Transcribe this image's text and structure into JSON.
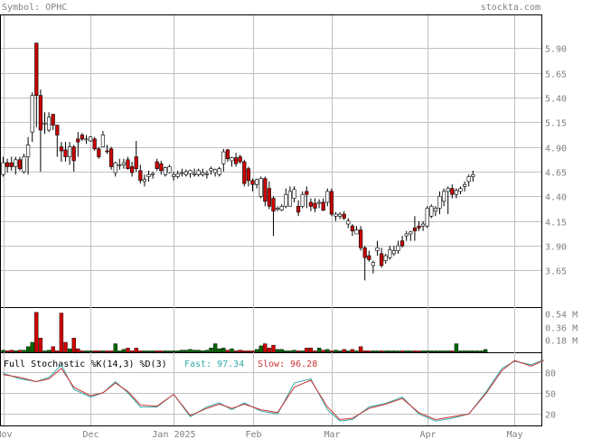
{
  "header": {
    "symbol_label": "Symbol: OPHC",
    "site": "stockta.com"
  },
  "colors": {
    "up": "#ffffff",
    "down": "#cc0000",
    "candle_outline": "#000000",
    "vol_up": "#006600",
    "vol_down": "#cc0000",
    "grid": "#c0c0c0",
    "text": "#808080",
    "fast": "#33aaaa",
    "slow": "#cc3333"
  },
  "chart_data": [
    {
      "type": "candlestick",
      "panel": "price",
      "y_ticks": [
        "5.90",
        "5.65",
        "5.40",
        "5.15",
        "4.90",
        "4.65",
        "4.40",
        "4.15",
        "3.90",
        "3.65"
      ],
      "ylim": [
        3.28,
        6.23
      ],
      "x_ticks": [
        "Nov",
        "Dec",
        "Jan 2025",
        "Feb",
        "Mar",
        "Apr",
        "May"
      ],
      "x_tick_index": [
        0,
        21,
        41,
        60,
        79,
        102,
        123
      ],
      "candles": [
        [
          4.62,
          4.8,
          4.6,
          4.74
        ],
        [
          4.74,
          4.78,
          4.64,
          4.7
        ],
        [
          4.74,
          4.8,
          4.66,
          4.7
        ],
        [
          4.7,
          4.8,
          4.62,
          4.77
        ],
        [
          4.77,
          4.8,
          4.66,
          4.68
        ],
        [
          4.65,
          4.83,
          4.63,
          4.8
        ],
        [
          4.8,
          5.0,
          4.62,
          4.92
        ],
        [
          5.05,
          5.45,
          4.95,
          5.42
        ],
        [
          5.95,
          5.95,
          5.1,
          5.42
        ],
        [
          5.42,
          5.48,
          4.65,
          5.07
        ],
        [
          5.13,
          5.25,
          5.03,
          5.14
        ],
        [
          5.07,
          5.25,
          5.05,
          5.2
        ],
        [
          5.23,
          5.23,
          5.07,
          5.12
        ],
        [
          5.12,
          5.12,
          4.8,
          5.02
        ],
        [
          4.9,
          4.95,
          4.75,
          4.86
        ],
        [
          4.87,
          4.95,
          4.75,
          4.8
        ],
        [
          4.8,
          4.95,
          4.72,
          4.9
        ],
        [
          4.9,
          4.92,
          4.65,
          4.76
        ],
        [
          4.98,
          5.05,
          4.8,
          4.95
        ],
        [
          5.02,
          5.04,
          4.96,
          4.98
        ],
        [
          4.98,
          5.02,
          4.93,
          4.98
        ],
        [
          4.96,
          5.01,
          4.95,
          5.0
        ],
        [
          4.98,
          5.0,
          4.86,
          4.88
        ],
        [
          4.88,
          4.9,
          4.78,
          4.8
        ],
        [
          4.9,
          5.06,
          4.9,
          5.02
        ],
        [
          4.86,
          4.92,
          4.83,
          4.85
        ],
        [
          4.88,
          4.9,
          4.67,
          4.7
        ],
        [
          4.64,
          4.75,
          4.6,
          4.74
        ],
        [
          4.72,
          4.78,
          4.67,
          4.72
        ],
        [
          4.72,
          4.78,
          4.68,
          4.74
        ],
        [
          4.77,
          4.8,
          4.67,
          4.68
        ],
        [
          4.7,
          4.75,
          4.6,
          4.64
        ],
        [
          4.8,
          4.96,
          4.65,
          4.68
        ],
        [
          4.66,
          4.72,
          4.53,
          4.56
        ],
        [
          4.55,
          4.62,
          4.5,
          4.57
        ],
        [
          4.6,
          4.66,
          4.55,
          4.62
        ],
        [
          4.62,
          4.65,
          4.58,
          4.63
        ],
        [
          4.75,
          4.78,
          4.66,
          4.68
        ],
        [
          4.73,
          4.76,
          4.62,
          4.66
        ],
        [
          4.62,
          4.7,
          4.6,
          4.69
        ],
        [
          4.64,
          4.72,
          4.63,
          4.7
        ],
        [
          4.6,
          4.65,
          4.56,
          4.62
        ],
        [
          4.6,
          4.66,
          4.58,
          4.63
        ],
        [
          4.64,
          4.68,
          4.6,
          4.64
        ],
        [
          4.62,
          4.67,
          4.6,
          4.65
        ],
        [
          4.63,
          4.67,
          4.59,
          4.66
        ],
        [
          4.62,
          4.68,
          4.6,
          4.63
        ],
        [
          4.62,
          4.68,
          4.6,
          4.66
        ],
        [
          4.62,
          4.68,
          4.6,
          4.64
        ],
        [
          4.62,
          4.66,
          4.58,
          4.63
        ],
        [
          4.66,
          4.7,
          4.62,
          4.68
        ],
        [
          4.64,
          4.68,
          4.6,
          4.67
        ],
        [
          4.62,
          4.7,
          4.6,
          4.68
        ],
        [
          4.73,
          4.88,
          4.65,
          4.85
        ],
        [
          4.87,
          4.88,
          4.75,
          4.78
        ],
        [
          4.76,
          4.8,
          4.7,
          4.79
        ],
        [
          4.79,
          4.84,
          4.7,
          4.73
        ],
        [
          4.8,
          4.82,
          4.73,
          4.75
        ],
        [
          4.75,
          4.77,
          4.5,
          4.53
        ],
        [
          4.68,
          4.7,
          4.5,
          4.56
        ],
        [
          4.56,
          4.58,
          4.45,
          4.52
        ],
        [
          4.52,
          4.58,
          4.48,
          4.57
        ],
        [
          4.4,
          4.6,
          4.38,
          4.58
        ],
        [
          4.58,
          4.6,
          4.3,
          4.35
        ],
        [
          4.48,
          4.55,
          4.27,
          4.3
        ],
        [
          4.38,
          4.4,
          4.0,
          4.25
        ],
        [
          4.27,
          4.3,
          4.25,
          4.28
        ],
        [
          4.26,
          4.32,
          4.25,
          4.3
        ],
        [
          4.3,
          4.48,
          4.28,
          4.42
        ],
        [
          4.3,
          4.5,
          4.3,
          4.45
        ],
        [
          4.38,
          4.5,
          4.34,
          4.47
        ],
        [
          4.3,
          4.36,
          4.2,
          4.24
        ],
        [
          4.3,
          4.45,
          4.28,
          4.42
        ],
        [
          4.45,
          4.5,
          4.28,
          4.42
        ],
        [
          4.34,
          4.38,
          4.25,
          4.3
        ],
        [
          4.33,
          4.38,
          4.24,
          4.28
        ],
        [
          4.33,
          4.37,
          4.28,
          4.34
        ],
        [
          4.34,
          4.38,
          4.25,
          4.26
        ],
        [
          4.34,
          4.48,
          4.3,
          4.45
        ],
        [
          4.45,
          4.48,
          4.2,
          4.22
        ],
        [
          4.2,
          4.24,
          4.15,
          4.22
        ],
        [
          4.2,
          4.24,
          4.17,
          4.22
        ],
        [
          4.22,
          4.25,
          4.16,
          4.18
        ],
        [
          4.12,
          4.18,
          4.08,
          4.15
        ],
        [
          4.1,
          4.12,
          4.0,
          4.05
        ],
        [
          4.02,
          4.1,
          4.02,
          4.06
        ],
        [
          4.06,
          4.1,
          3.85,
          3.88
        ],
        [
          3.88,
          3.9,
          3.55,
          3.78
        ],
        [
          3.8,
          3.85,
          3.74,
          3.76
        ],
        [
          3.7,
          3.75,
          3.62,
          3.73
        ],
        [
          3.85,
          3.95,
          3.8,
          3.88
        ],
        [
          3.82,
          3.88,
          3.68,
          3.7
        ],
        [
          3.75,
          3.82,
          3.72,
          3.8
        ],
        [
          3.78,
          3.9,
          3.76,
          3.86
        ],
        [
          3.82,
          3.9,
          3.8,
          3.85
        ],
        [
          3.85,
          3.95,
          3.82,
          3.9
        ],
        [
          3.95,
          4.0,
          3.88,
          3.9
        ],
        [
          4.0,
          4.05,
          3.95,
          4.02
        ],
        [
          4.02,
          4.05,
          3.95,
          4.04
        ],
        [
          4.08,
          4.2,
          3.95,
          4.05
        ],
        [
          4.1,
          4.15,
          4.05,
          4.08
        ],
        [
          4.1,
          4.15,
          4.05,
          4.12
        ],
        [
          4.1,
          4.3,
          4.08,
          4.28
        ],
        [
          4.2,
          4.32,
          4.18,
          4.3
        ],
        [
          4.25,
          4.3,
          4.2,
          4.28
        ],
        [
          4.28,
          4.45,
          4.22,
          4.4
        ],
        [
          4.35,
          4.48,
          4.3,
          4.45
        ],
        [
          4.45,
          4.5,
          4.22,
          4.48
        ],
        [
          4.48,
          4.52,
          4.38,
          4.42
        ],
        [
          4.42,
          4.48,
          4.38,
          4.46
        ],
        [
          4.45,
          4.5,
          4.42,
          4.48
        ],
        [
          4.5,
          4.55,
          4.45,
          4.52
        ],
        [
          4.55,
          4.62,
          4.5,
          4.6
        ],
        [
          4.6,
          4.66,
          4.55,
          4.62
        ]
      ]
    },
    {
      "type": "bar",
      "panel": "volume",
      "y_ticks": [
        "0.54 M",
        "0.36 M",
        "0.18 M"
      ],
      "ylim": [
        0,
        0.62
      ],
      "values": [
        0.03,
        0.02,
        0.03,
        0.02,
        0.03,
        0.03,
        0.08,
        0.14,
        0.56,
        0.2,
        0.02,
        0.03,
        0.08,
        0.02,
        0.55,
        0.14,
        0.05,
        0.2,
        0.05,
        0.02,
        0.02,
        0.02,
        0.02,
        0.02,
        0.02,
        0.02,
        0.02,
        0.12,
        0.02,
        0.04,
        0.06,
        0.02,
        0.06,
        0.02,
        0.02,
        0.02,
        0.02,
        0.02,
        0.02,
        0.02,
        0.02,
        0.02,
        0.02,
        0.03,
        0.03,
        0.04,
        0.03,
        0.03,
        0.02,
        0.03,
        0.06,
        0.12,
        0.05,
        0.06,
        0.03,
        0.05,
        0.02,
        0.03,
        0.02,
        0.02,
        0.02,
        0.04,
        0.09,
        0.12,
        0.06,
        0.1,
        0.04,
        0.04,
        0.02,
        0.02,
        0.03,
        0.02,
        0.02,
        0.06,
        0.06,
        0.02,
        0.06,
        0.03,
        0.04,
        0.02,
        0.03,
        0.02,
        0.04,
        0.02,
        0.04,
        0.02,
        0.08,
        0.02,
        0.02,
        0.02,
        0.02,
        0.02,
        0.02,
        0.02,
        0.02,
        0.02,
        0.02,
        0.02,
        0.02,
        0.02,
        0.02,
        0.02,
        0.02,
        0.02,
        0.02,
        0.02,
        0.02,
        0.02,
        0.02,
        0.12,
        0.02,
        0.02,
        0.02,
        0.02,
        0.02,
        0.02,
        0.04
      ]
    },
    {
      "type": "line",
      "panel": "stochastic",
      "title": "Full Stochastic %K(14,3) %D(3)",
      "legend": [
        {
          "name": "Fast: 97.34"
        },
        {
          "name": "Slow: 96.28"
        }
      ],
      "y_ticks": [
        "80",
        "50",
        "20"
      ],
      "ylim": [
        5,
        100
      ],
      "x": [
        0,
        4,
        8,
        11,
        14,
        17,
        21,
        24,
        27,
        30,
        33,
        37,
        41,
        45,
        49,
        52,
        55,
        58,
        62,
        66,
        70,
        74,
        78,
        81,
        84,
        88,
        92,
        96,
        100,
        104,
        108,
        112,
        116,
        120,
        123,
        127,
        130
      ],
      "series": [
        {
          "values": [
            78,
            70,
            66,
            72,
            90,
            55,
            44,
            50,
            66,
            50,
            30,
            30,
            48,
            16,
            30,
            36,
            26,
            36,
            24,
            20,
            64,
            70,
            26,
            10,
            12,
            30,
            35,
            44,
            20,
            10,
            14,
            20,
            50,
            85,
            95,
            90,
            97
          ]
        },
        {
          "values": [
            76,
            72,
            66,
            70,
            85,
            58,
            46,
            50,
            64,
            52,
            33,
            31,
            48,
            18,
            28,
            34,
            28,
            34,
            26,
            22,
            58,
            68,
            30,
            12,
            14,
            28,
            34,
            42,
            22,
            12,
            16,
            20,
            48,
            82,
            96,
            88,
            96
          ]
        }
      ]
    }
  ]
}
